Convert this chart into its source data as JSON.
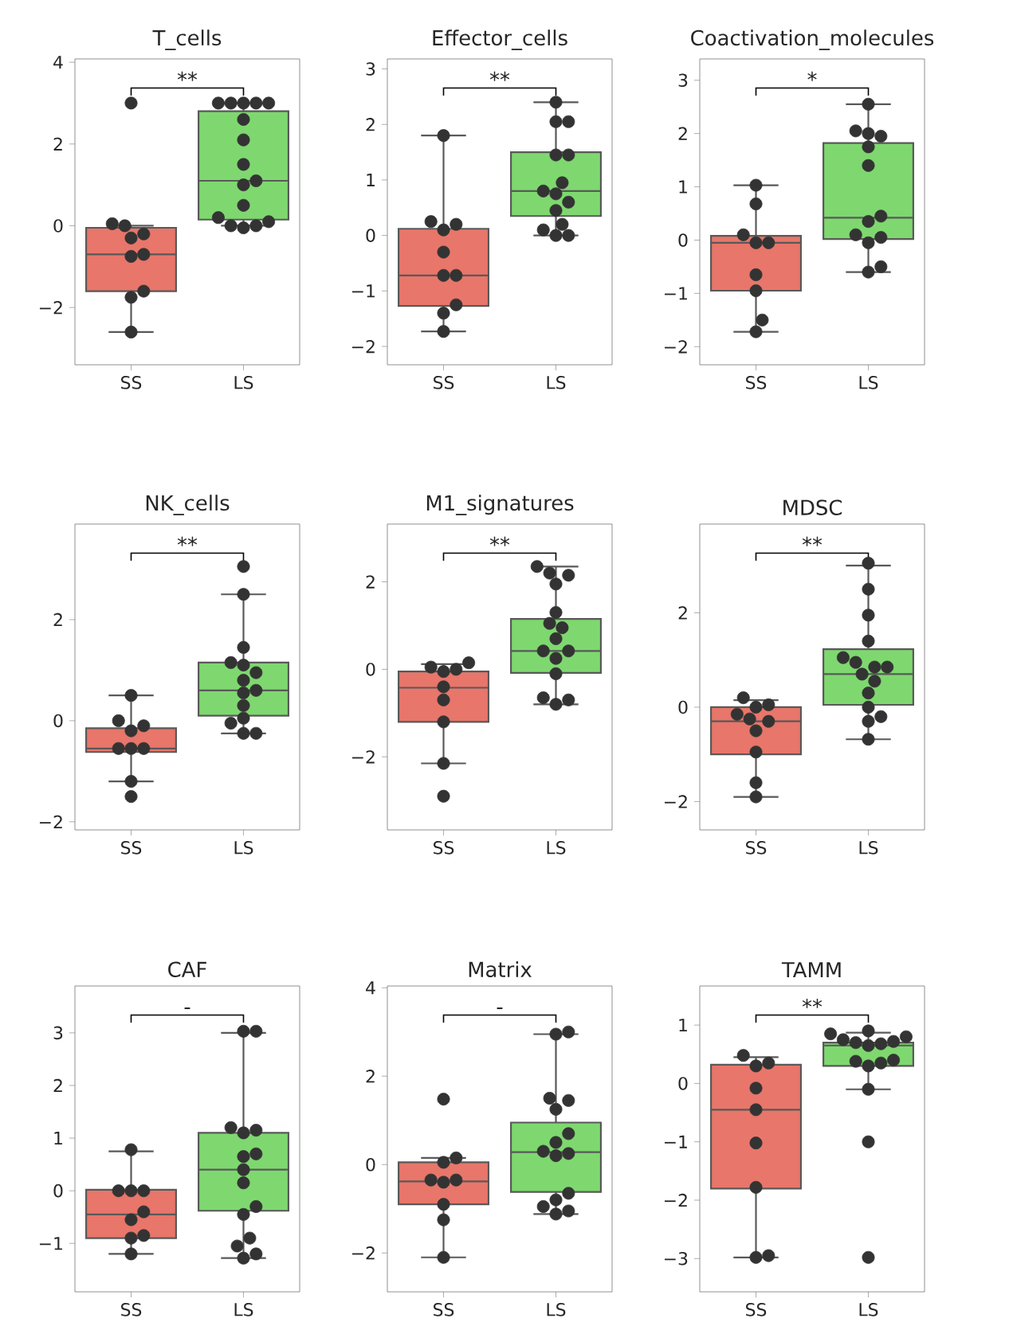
{
  "chart_data": [
    {
      "type": "box",
      "title": "T_cells",
      "categories": [
        "SS",
        "LS"
      ],
      "ylim": [
        -3.4,
        4.08
      ],
      "yticks": [
        {
          "value": -2,
          "label": "−2"
        },
        0,
        2,
        4
      ],
      "marker": "circle",
      "annotations": [
        "**"
      ],
      "series": [
        {
          "type": "box",
          "colors": [
            "#e8766a",
            "#7ed86f"
          ],
          "boxes": [
            {
              "low": -2.6,
              "q1": -1.6,
              "median": -0.7,
              "q3": -0.05,
              "high": 0.0
            },
            {
              "low": 0.0,
              "q1": 0.15,
              "median": 1.1,
              "q3": 2.8,
              "high": 3.0
            }
          ]
        },
        {
          "type": "scatter",
          "color": "#333333",
          "x": [
            "SS",
            "SS",
            "SS",
            "SS",
            "SS",
            "SS",
            "SS",
            "SS",
            "SS",
            "SS",
            "LS",
            "LS",
            "LS",
            "LS",
            "LS",
            "LS",
            "LS",
            "LS",
            "LS",
            "LS",
            "LS",
            "LS",
            "LS",
            "LS",
            "LS",
            "LS"
          ],
          "values": [
            3.0,
            0.05,
            0.0,
            -0.2,
            -0.3,
            -0.7,
            -0.75,
            -1.6,
            -1.75,
            -2.6,
            3.0,
            3.0,
            3.0,
            3.0,
            3.0,
            2.6,
            2.1,
            1.5,
            1.1,
            1.0,
            0.5,
            0.2,
            0.1,
            0.0,
            0.0,
            -0.05
          ]
        }
      ]
    },
    {
      "type": "box",
      "title": "Effector_cells",
      "categories": [
        "SS",
        "LS"
      ],
      "ylim": [
        -2.33,
        3.18
      ],
      "yticks": [
        {
          "value": -2,
          "label": "−2"
        },
        {
          "value": -1,
          "label": "−1"
        },
        0,
        1,
        2,
        3
      ],
      "marker": "circle",
      "annotations": [
        "**"
      ],
      "series": [
        {
          "type": "box",
          "colors": [
            "#e8766a",
            "#7ed86f"
          ],
          "boxes": [
            {
              "low": -1.73,
              "q1": -1.27,
              "median": -0.72,
              "q3": 0.12,
              "high": 1.8
            },
            {
              "low": 0.0,
              "q1": 0.35,
              "median": 0.8,
              "q3": 1.5,
              "high": 2.4
            }
          ]
        },
        {
          "type": "scatter",
          "color": "#333333",
          "x": [
            "SS",
            "SS",
            "SS",
            "SS",
            "SS",
            "SS",
            "SS",
            "SS",
            "SS",
            "SS",
            "LS",
            "LS",
            "LS",
            "LS",
            "LS",
            "LS",
            "LS",
            "LS",
            "LS",
            "LS",
            "LS",
            "LS",
            "LS",
            "LS"
          ],
          "values": [
            1.8,
            0.25,
            0.2,
            0.1,
            -0.3,
            -0.72,
            -0.72,
            -1.25,
            -1.4,
            -1.73,
            2.4,
            2.05,
            2.05,
            1.45,
            1.45,
            0.95,
            0.8,
            0.75,
            0.6,
            0.45,
            0.2,
            0.1,
            0.0,
            0.0
          ]
        }
      ]
    },
    {
      "type": "box",
      "title": "Coactivation_molecules",
      "categories": [
        "SS",
        "LS"
      ],
      "ylim": [
        -2.34,
        3.4
      ],
      "yticks": [
        {
          "value": -2,
          "label": "−2"
        },
        {
          "value": -1,
          "label": "−1"
        },
        0,
        1,
        2,
        3
      ],
      "marker": "circle",
      "annotations": [
        "*"
      ],
      "series": [
        {
          "type": "box",
          "colors": [
            "#e8766a",
            "#7ed86f"
          ],
          "boxes": [
            {
              "low": -1.72,
              "q1": -0.95,
              "median": -0.05,
              "q3": 0.08,
              "high": 1.03
            },
            {
              "low": -0.6,
              "q1": 0.02,
              "median": 0.42,
              "q3": 1.82,
              "high": 2.55
            }
          ]
        },
        {
          "type": "scatter",
          "color": "#333333",
          "x": [
            "SS",
            "SS",
            "SS",
            "SS",
            "SS",
            "SS",
            "SS",
            "SS",
            "SS",
            "LS",
            "LS",
            "LS",
            "LS",
            "LS",
            "LS",
            "LS",
            "LS",
            "LS",
            "LS",
            "LS",
            "LS",
            "LS"
          ],
          "values": [
            1.03,
            0.68,
            0.1,
            -0.05,
            -0.05,
            -0.65,
            -0.95,
            -1.5,
            -1.72,
            2.55,
            2.05,
            2.0,
            1.95,
            1.75,
            1.4,
            0.45,
            0.35,
            0.1,
            0.05,
            -0.05,
            -0.5,
            -0.6
          ]
        }
      ]
    },
    {
      "type": "box",
      "title": "NK_cells",
      "categories": [
        "SS",
        "LS"
      ],
      "ylim": [
        -2.16,
        3.89
      ],
      "yticks": [
        {
          "value": -2,
          "label": "−2"
        },
        0,
        2
      ],
      "marker": "circle",
      "annotations": [
        "**"
      ],
      "series": [
        {
          "type": "box",
          "colors": [
            "#e8766a",
            "#7ed86f"
          ],
          "boxes": [
            {
              "low": -1.2,
              "q1": -0.62,
              "median": -0.55,
              "q3": -0.15,
              "high": 0.5
            },
            {
              "low": -0.25,
              "q1": 0.1,
              "median": 0.6,
              "q3": 1.15,
              "high": 2.5
            }
          ]
        },
        {
          "type": "scatter",
          "color": "#333333",
          "x": [
            "SS",
            "SS",
            "SS",
            "SS",
            "SS",
            "SS",
            "SS",
            "SS",
            "SS",
            "LS",
            "LS",
            "LS",
            "LS",
            "LS",
            "LS",
            "LS",
            "LS",
            "LS",
            "LS",
            "LS",
            "LS",
            "LS",
            "LS"
          ],
          "values": [
            0.5,
            0.0,
            -0.1,
            -0.2,
            -0.55,
            -0.55,
            -0.55,
            -1.2,
            -1.5,
            3.05,
            2.5,
            1.45,
            1.15,
            1.1,
            0.95,
            0.8,
            0.6,
            0.55,
            0.3,
            0.05,
            -0.05,
            -0.25,
            -0.25
          ]
        }
      ]
    },
    {
      "type": "box",
      "title": "M1_signatures",
      "categories": [
        "SS",
        "LS"
      ],
      "ylim": [
        -3.67,
        3.32
      ],
      "yticks": [
        {
          "value": -2,
          "label": "−2"
        },
        0,
        2
      ],
      "marker": "circle",
      "annotations": [
        "**"
      ],
      "series": [
        {
          "type": "box",
          "colors": [
            "#e8766a",
            "#7ed86f"
          ],
          "boxes": [
            {
              "low": -2.15,
              "q1": -1.2,
              "median": -0.42,
              "q3": -0.05,
              "high": 0.12
            },
            {
              "low": -0.8,
              "q1": -0.08,
              "median": 0.42,
              "q3": 1.15,
              "high": 2.35
            }
          ]
        },
        {
          "type": "scatter",
          "color": "#333333",
          "x": [
            "SS",
            "SS",
            "SS",
            "SS",
            "SS",
            "SS",
            "SS",
            "SS",
            "SS",
            "LS",
            "LS",
            "LS",
            "LS",
            "LS",
            "LS",
            "LS",
            "LS",
            "LS",
            "LS",
            "LS",
            "LS",
            "LS",
            "LS",
            "LS"
          ],
          "values": [
            0.15,
            0.05,
            0.0,
            -0.05,
            -0.4,
            -0.7,
            -1.2,
            -2.15,
            -2.9,
            2.35,
            2.2,
            2.15,
            1.95,
            1.3,
            1.05,
            0.95,
            0.7,
            0.42,
            0.42,
            0.25,
            -0.1,
            -0.65,
            -0.7,
            -0.8
          ]
        }
      ]
    },
    {
      "type": "box",
      "title": "MDSC",
      "categories": [
        "SS",
        "LS"
      ],
      "ylim": [
        -2.6,
        3.88
      ],
      "yticks": [
        {
          "value": -2,
          "label": "−2"
        },
        0,
        2
      ],
      "marker": "circle",
      "annotations": [
        "**"
      ],
      "series": [
        {
          "type": "box",
          "colors": [
            "#e8766a",
            "#7ed86f"
          ],
          "boxes": [
            {
              "low": -1.9,
              "q1": -1.0,
              "median": -0.3,
              "q3": 0.0,
              "high": 0.15
            },
            {
              "low": -0.68,
              "q1": 0.05,
              "median": 0.7,
              "q3": 1.23,
              "high": 3.0
            }
          ]
        },
        {
          "type": "scatter",
          "color": "#333333",
          "x": [
            "SS",
            "SS",
            "SS",
            "SS",
            "SS",
            "SS",
            "SS",
            "SS",
            "SS",
            "SS",
            "LS",
            "LS",
            "LS",
            "LS",
            "LS",
            "LS",
            "LS",
            "LS",
            "LS",
            "LS",
            "LS",
            "LS",
            "LS",
            "LS",
            "LS"
          ],
          "values": [
            0.2,
            0.05,
            0.0,
            -0.15,
            -0.25,
            -0.3,
            -0.5,
            -0.95,
            -1.6,
            -1.9,
            3.05,
            2.5,
            1.95,
            1.4,
            1.05,
            0.95,
            0.85,
            0.85,
            0.7,
            0.55,
            0.3,
            0.0,
            -0.2,
            -0.3,
            -0.68
          ]
        }
      ]
    },
    {
      "type": "box",
      "title": "CAF",
      "categories": [
        "SS",
        "LS"
      ],
      "ylim": [
        -1.92,
        3.89
      ],
      "yticks": [
        {
          "value": -1,
          "label": "−1"
        },
        0,
        1,
        2,
        3
      ],
      "marker": "circle",
      "annotations": [
        "-"
      ],
      "series": [
        {
          "type": "box",
          "colors": [
            "#e8766a",
            "#7ed86f"
          ],
          "boxes": [
            {
              "low": -1.2,
              "q1": -0.9,
              "median": -0.45,
              "q3": 0.02,
              "high": 0.75
            },
            {
              "low": -1.28,
              "q1": -0.38,
              "median": 0.4,
              "q3": 1.1,
              "high": 3.0
            }
          ]
        },
        {
          "type": "scatter",
          "color": "#333333",
          "x": [
            "SS",
            "SS",
            "SS",
            "SS",
            "SS",
            "SS",
            "SS",
            "SS",
            "SS",
            "LS",
            "LS",
            "LS",
            "LS",
            "LS",
            "LS",
            "LS",
            "LS",
            "LS",
            "LS",
            "LS",
            "LS",
            "LS",
            "LS",
            "LS"
          ],
          "values": [
            0.78,
            0.0,
            0.0,
            0.0,
            -0.4,
            -0.55,
            -0.85,
            -0.9,
            -1.2,
            3.03,
            3.03,
            1.2,
            1.15,
            1.1,
            0.7,
            0.65,
            0.4,
            0.15,
            -0.3,
            -0.45,
            -0.9,
            -1.05,
            -1.2,
            -1.28
          ]
        }
      ]
    },
    {
      "type": "box",
      "title": "Matrix",
      "categories": [
        "SS",
        "LS"
      ],
      "ylim": [
        -2.88,
        4.04
      ],
      "yticks": [
        {
          "value": -2,
          "label": "−2"
        },
        0,
        2,
        4
      ],
      "marker": "circle",
      "annotations": [
        "-"
      ],
      "series": [
        {
          "type": "box",
          "colors": [
            "#e8766a",
            "#7ed86f"
          ],
          "boxes": [
            {
              "low": -2.1,
              "q1": -0.9,
              "median": -0.38,
              "q3": 0.05,
              "high": 0.15
            },
            {
              "low": -1.12,
              "q1": -0.62,
              "median": 0.28,
              "q3": 0.95,
              "high": 2.95
            }
          ]
        },
        {
          "type": "scatter",
          "color": "#333333",
          "x": [
            "SS",
            "SS",
            "SS",
            "SS",
            "SS",
            "SS",
            "SS",
            "SS",
            "SS",
            "LS",
            "LS",
            "LS",
            "LS",
            "LS",
            "LS",
            "LS",
            "LS",
            "LS",
            "LS",
            "LS",
            "LS",
            "LS",
            "LS",
            "LS"
          ],
          "values": [
            1.48,
            0.15,
            0.05,
            -0.35,
            -0.35,
            -0.4,
            -0.9,
            -1.25,
            -2.1,
            3.0,
            2.95,
            1.5,
            1.45,
            1.25,
            0.7,
            0.5,
            0.3,
            0.25,
            0.2,
            -0.65,
            -0.8,
            -0.95,
            -1.05,
            -1.12
          ]
        }
      ]
    },
    {
      "type": "box",
      "title": "TAMM",
      "categories": [
        "SS",
        "LS"
      ],
      "ylim": [
        -3.57,
        1.67
      ],
      "yticks": [
        {
          "value": -3,
          "label": "−3"
        },
        {
          "value": -2,
          "label": "−2"
        },
        {
          "value": -1,
          "label": "−1"
        },
        0,
        1
      ],
      "marker": "circle",
      "annotations": [
        "**"
      ],
      "series": [
        {
          "type": "box",
          "colors": [
            "#e8766a",
            "#7ed86f"
          ],
          "boxes": [
            {
              "low": -2.98,
              "q1": -1.8,
              "median": -0.45,
              "q3": 0.32,
              "high": 0.45
            },
            {
              "low": -0.1,
              "q1": 0.3,
              "median": 0.65,
              "q3": 0.7,
              "high": 0.87
            }
          ]
        },
        {
          "type": "scatter",
          "color": "#333333",
          "x": [
            "SS",
            "SS",
            "SS",
            "SS",
            "SS",
            "SS",
            "SS",
            "SS",
            "SS",
            "LS",
            "LS",
            "LS",
            "LS",
            "LS",
            "LS",
            "LS",
            "LS",
            "LS",
            "LS",
            "LS",
            "LS",
            "LS",
            "LS",
            "LS"
          ],
          "values": [
            0.48,
            0.35,
            0.3,
            -0.08,
            -0.45,
            -1.02,
            -1.78,
            -2.95,
            -2.98,
            0.9,
            0.85,
            0.8,
            0.75,
            0.72,
            0.7,
            0.68,
            0.65,
            0.4,
            0.38,
            0.35,
            0.3,
            -0.1,
            -1.0,
            -2.98
          ]
        }
      ]
    }
  ]
}
